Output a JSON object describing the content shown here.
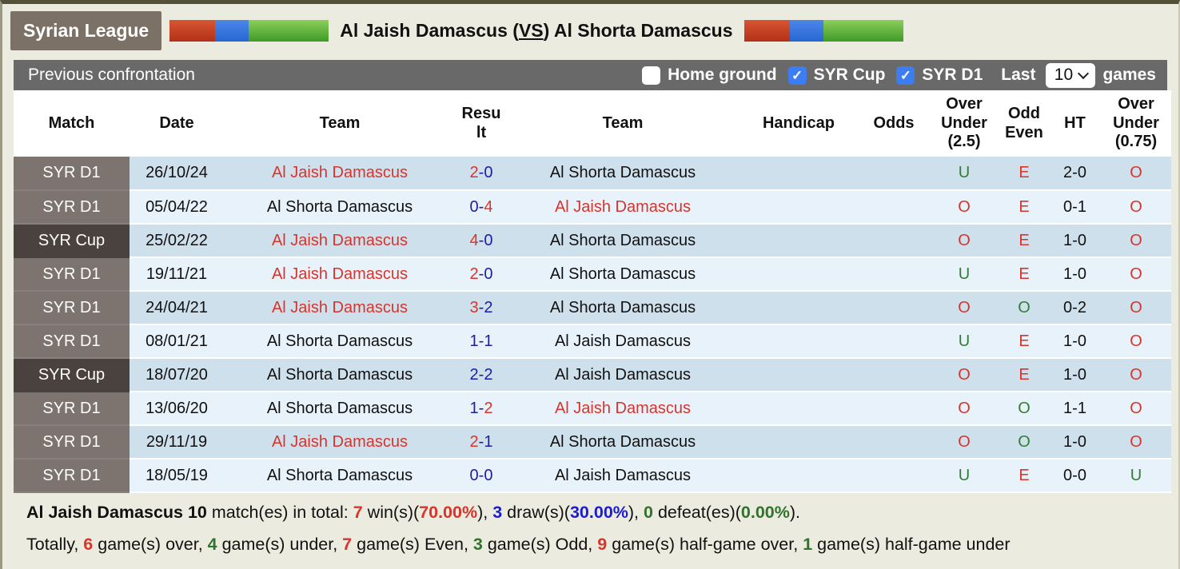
{
  "page": {
    "league_badge": "Syrian League",
    "title": {
      "pre": "Al Jaish Damascus (",
      "vs": "VS",
      "post": ") Al Shorta Damascus"
    }
  },
  "filter_bar": {
    "title": "Previous confrontation",
    "checkboxes": [
      {
        "label": "Home ground",
        "checked": false
      },
      {
        "label": "SYR Cup",
        "checked": true
      },
      {
        "label": "SYR D1",
        "checked": true
      }
    ],
    "last_label": "Last",
    "games_select_value": "10",
    "games_label": "games",
    "check_icon": "✓"
  },
  "table": {
    "headers": [
      "Match",
      "Date",
      "Team",
      "Result",
      "Team",
      "Handicap",
      "Odds",
      "Over Under (2.5)",
      "Odd Even",
      "HT",
      "Over Under (0.75)"
    ],
    "rows": [
      {
        "competition": "SYR D1",
        "is_cup": false,
        "date": "26/10/24",
        "team1": {
          "name": "Al Jaish Damascus",
          "highlight": true
        },
        "result": {
          "score1": "2",
          "color1": "red",
          "score2": "0",
          "color2": "navy"
        },
        "team2": {
          "name": "Al Shorta Damascus",
          "highlight": false
        },
        "handicap": "",
        "odds": "",
        "over_under_2_5": {
          "value": "U",
          "color": "green"
        },
        "odd_even": {
          "value": "E",
          "color": "red"
        },
        "ht": "2-0",
        "over_under_0_75": {
          "value": "O",
          "color": "red"
        }
      },
      {
        "competition": "SYR D1",
        "is_cup": false,
        "date": "05/04/22",
        "team1": {
          "name": "Al Shorta Damascus",
          "highlight": false
        },
        "result": {
          "score1": "0",
          "color1": "navy",
          "score2": "4",
          "color2": "red"
        },
        "team2": {
          "name": "Al Jaish Damascus",
          "highlight": true
        },
        "handicap": "",
        "odds": "",
        "over_under_2_5": {
          "value": "O",
          "color": "red"
        },
        "odd_even": {
          "value": "E",
          "color": "red"
        },
        "ht": "0-1",
        "over_under_0_75": {
          "value": "O",
          "color": "red"
        }
      },
      {
        "competition": "SYR Cup",
        "is_cup": true,
        "date": "25/02/22",
        "team1": {
          "name": "Al Jaish Damascus",
          "highlight": true
        },
        "result": {
          "score1": "4",
          "color1": "red",
          "score2": "0",
          "color2": "navy"
        },
        "team2": {
          "name": "Al Shorta Damascus",
          "highlight": false
        },
        "handicap": "",
        "odds": "",
        "over_under_2_5": {
          "value": "O",
          "color": "red"
        },
        "odd_even": {
          "value": "E",
          "color": "red"
        },
        "ht": "1-0",
        "over_under_0_75": {
          "value": "O",
          "color": "red"
        }
      },
      {
        "competition": "SYR D1",
        "is_cup": false,
        "date": "19/11/21",
        "team1": {
          "name": "Al Jaish Damascus",
          "highlight": true
        },
        "result": {
          "score1": "2",
          "color1": "red",
          "score2": "0",
          "color2": "navy"
        },
        "team2": {
          "name": "Al Shorta Damascus",
          "highlight": false
        },
        "handicap": "",
        "odds": "",
        "over_under_2_5": {
          "value": "U",
          "color": "green"
        },
        "odd_even": {
          "value": "E",
          "color": "red"
        },
        "ht": "1-0",
        "over_under_0_75": {
          "value": "O",
          "color": "red"
        }
      },
      {
        "competition": "SYR D1",
        "is_cup": false,
        "date": "24/04/21",
        "team1": {
          "name": "Al Jaish Damascus",
          "highlight": true
        },
        "result": {
          "score1": "3",
          "color1": "red",
          "score2": "2",
          "color2": "navy"
        },
        "team2": {
          "name": "Al Shorta Damascus",
          "highlight": false
        },
        "handicap": "",
        "odds": "",
        "over_under_2_5": {
          "value": "O",
          "color": "red"
        },
        "odd_even": {
          "value": "O",
          "color": "green"
        },
        "ht": "0-2",
        "over_under_0_75": {
          "value": "O",
          "color": "red"
        }
      },
      {
        "competition": "SYR D1",
        "is_cup": false,
        "date": "08/01/21",
        "team1": {
          "name": "Al Shorta Damascus",
          "highlight": false
        },
        "result": {
          "score1": "1",
          "color1": "navy",
          "score2": "1",
          "color2": "navy"
        },
        "team2": {
          "name": "Al Jaish Damascus",
          "highlight": false
        },
        "handicap": "",
        "odds": "",
        "over_under_2_5": {
          "value": "U",
          "color": "green"
        },
        "odd_even": {
          "value": "E",
          "color": "red"
        },
        "ht": "1-0",
        "over_under_0_75": {
          "value": "O",
          "color": "red"
        }
      },
      {
        "competition": "SYR Cup",
        "is_cup": true,
        "date": "18/07/20",
        "team1": {
          "name": "Al Shorta Damascus",
          "highlight": false
        },
        "result": {
          "score1": "2",
          "color1": "navy",
          "score2": "2",
          "color2": "navy"
        },
        "team2": {
          "name": "Al Jaish Damascus",
          "highlight": false
        },
        "handicap": "",
        "odds": "",
        "over_under_2_5": {
          "value": "O",
          "color": "red"
        },
        "odd_even": {
          "value": "E",
          "color": "red"
        },
        "ht": "1-0",
        "over_under_0_75": {
          "value": "O",
          "color": "red"
        }
      },
      {
        "competition": "SYR D1",
        "is_cup": false,
        "date": "13/06/20",
        "team1": {
          "name": "Al Shorta Damascus",
          "highlight": false
        },
        "result": {
          "score1": "1",
          "color1": "navy",
          "score2": "2",
          "color2": "red"
        },
        "team2": {
          "name": "Al Jaish Damascus",
          "highlight": true
        },
        "handicap": "",
        "odds": "",
        "over_under_2_5": {
          "value": "O",
          "color": "red"
        },
        "odd_even": {
          "value": "O",
          "color": "green"
        },
        "ht": "1-1",
        "over_under_0_75": {
          "value": "O",
          "color": "red"
        }
      },
      {
        "competition": "SYR D1",
        "is_cup": false,
        "date": "29/11/19",
        "team1": {
          "name": "Al Jaish Damascus",
          "highlight": true
        },
        "result": {
          "score1": "2",
          "color1": "red",
          "score2": "1",
          "color2": "navy"
        },
        "team2": {
          "name": "Al Shorta Damascus",
          "highlight": false
        },
        "handicap": "",
        "odds": "",
        "over_under_2_5": {
          "value": "O",
          "color": "red"
        },
        "odd_even": {
          "value": "O",
          "color": "green"
        },
        "ht": "1-0",
        "over_under_0_75": {
          "value": "O",
          "color": "red"
        }
      },
      {
        "competition": "SYR D1",
        "is_cup": false,
        "date": "18/05/19",
        "team1": {
          "name": "Al Shorta Damascus",
          "highlight": false
        },
        "result": {
          "score1": "0",
          "color1": "navy",
          "score2": "0",
          "color2": "navy"
        },
        "team2": {
          "name": "Al Jaish Damascus",
          "highlight": false
        },
        "handicap": "",
        "odds": "",
        "over_under_2_5": {
          "value": "U",
          "color": "green"
        },
        "odd_even": {
          "value": "E",
          "color": "red"
        },
        "ht": "0-0",
        "over_under_0_75": {
          "value": "U",
          "color": "green"
        }
      }
    ]
  },
  "summary": {
    "line1": [
      {
        "t": "Al Jaish Damascus 10",
        "b": true
      },
      {
        "t": " match(es) in total: "
      },
      {
        "t": "7",
        "c": "red",
        "b": true
      },
      {
        "t": " win(s)("
      },
      {
        "t": "70.00%",
        "c": "red",
        "b": true
      },
      {
        "t": "), "
      },
      {
        "t": "3",
        "c": "blue",
        "b": true
      },
      {
        "t": " draw(s)("
      },
      {
        "t": "30.00%",
        "c": "blue",
        "b": true
      },
      {
        "t": "), "
      },
      {
        "t": "0",
        "c": "green",
        "b": true
      },
      {
        "t": " defeat(es)("
      },
      {
        "t": "0.00%",
        "c": "green",
        "b": true
      },
      {
        "t": ")."
      }
    ],
    "line2": [
      {
        "t": "Totally, "
      },
      {
        "t": "6",
        "c": "red",
        "b": true
      },
      {
        "t": " game(s) over, "
      },
      {
        "t": "4",
        "c": "green",
        "b": true
      },
      {
        "t": " game(s) under, "
      },
      {
        "t": "7",
        "c": "red",
        "b": true
      },
      {
        "t": " game(s) Even, "
      },
      {
        "t": "3",
        "c": "green",
        "b": true
      },
      {
        "t": " game(s) Odd, "
      },
      {
        "t": "9",
        "c": "red",
        "b": true
      },
      {
        "t": " game(s) half-game over, "
      },
      {
        "t": "1",
        "c": "green",
        "b": true
      },
      {
        "t": " game(s) half-game under"
      }
    ]
  },
  "colors": {
    "win_red": "#d9342b",
    "score_navy": "#1c1ca8",
    "under_green": "#2f8032",
    "summary_blue": "#1b1bd4",
    "badge_brown": "#7c7166",
    "bar_gray": "#696969",
    "row_dark": "#cfe0ed",
    "row_light": "#e8f2fa",
    "match_d1_bg": "#7d7470",
    "match_cup_bg": "#4a423e",
    "checkbox_blue": "#3d7df2"
  }
}
